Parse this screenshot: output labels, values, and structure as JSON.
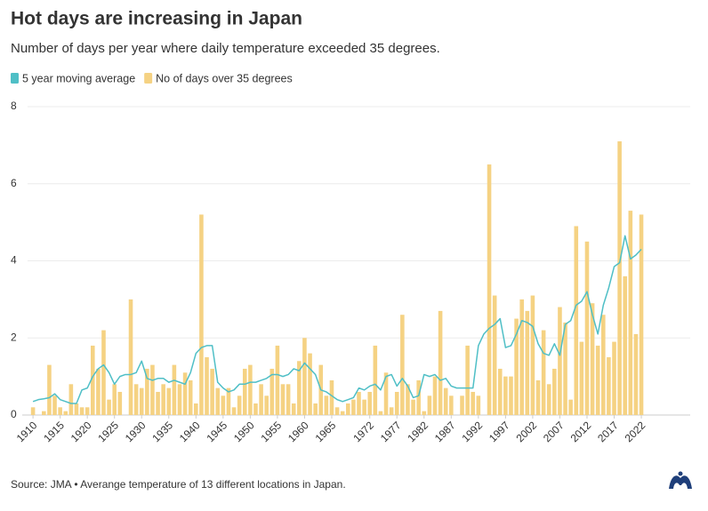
{
  "chart_data": {
    "type": "bar",
    "title": "Hot days are increasing in Japan",
    "subtitle": "Number of days per year where daily temperature exceeded 35 degrees.",
    "source": "Source: JMA • Averange temperature of 13 different locations in Japan.",
    "x": [
      1910,
      1911,
      1912,
      1913,
      1914,
      1915,
      1916,
      1917,
      1918,
      1919,
      1920,
      1921,
      1922,
      1923,
      1924,
      1925,
      1926,
      1927,
      1928,
      1929,
      1930,
      1931,
      1932,
      1933,
      1934,
      1935,
      1936,
      1937,
      1938,
      1939,
      1940,
      1941,
      1942,
      1943,
      1944,
      1945,
      1946,
      1947,
      1948,
      1949,
      1950,
      1951,
      1952,
      1953,
      1954,
      1955,
      1956,
      1957,
      1958,
      1959,
      1960,
      1961,
      1962,
      1963,
      1964,
      1965,
      1966,
      1967,
      1968,
      1969,
      1970,
      1971,
      1972,
      1973,
      1974,
      1975,
      1976,
      1977,
      1978,
      1979,
      1980,
      1981,
      1982,
      1983,
      1984,
      1985,
      1986,
      1987,
      1988,
      1989,
      1990,
      1991,
      1992,
      1993,
      1994,
      1995,
      1996,
      1997,
      1998,
      1999,
      2000,
      2001,
      2002,
      2003,
      2004,
      2005,
      2006,
      2007,
      2008,
      2009,
      2010,
      2011,
      2012,
      2013,
      2014,
      2015,
      2016,
      2017,
      2018,
      2019,
      2020,
      2021,
      2022
    ],
    "series": [
      {
        "name": "5 year moving average",
        "color": "#4fbfc6",
        "type": "line",
        "values": [
          0.35,
          0.4,
          0.42,
          0.45,
          0.55,
          0.4,
          0.35,
          0.3,
          0.3,
          0.65,
          0.7,
          1.0,
          1.2,
          1.3,
          1.1,
          0.8,
          1.0,
          1.05,
          1.05,
          1.1,
          1.4,
          0.95,
          0.9,
          0.95,
          0.95,
          0.85,
          0.9,
          0.85,
          0.8,
          1.1,
          1.6,
          1.75,
          1.8,
          1.8,
          0.85,
          0.7,
          0.6,
          0.65,
          0.8,
          0.8,
          0.85,
          0.85,
          0.9,
          0.95,
          1.05,
          1.05,
          1.0,
          1.05,
          1.2,
          1.15,
          1.35,
          1.2,
          1.05,
          0.65,
          0.6,
          0.5,
          0.4,
          0.35,
          0.4,
          0.45,
          0.7,
          0.65,
          0.75,
          0.8,
          0.65,
          1.0,
          1.05,
          0.75,
          0.95,
          0.75,
          0.45,
          0.5,
          1.05,
          1.0,
          1.05,
          0.9,
          0.95,
          0.75,
          0.7,
          0.7,
          0.7,
          0.7,
          1.8,
          2.1,
          2.25,
          2.35,
          2.5,
          1.75,
          1.8,
          2.1,
          2.45,
          2.4,
          2.3,
          1.85,
          1.6,
          1.55,
          1.85,
          1.55,
          2.35,
          2.45,
          2.85,
          2.95,
          3.2,
          2.6,
          2.1,
          2.85,
          3.3,
          3.85,
          3.95,
          4.65,
          4.05,
          4.15,
          4.3
        ]
      },
      {
        "name": "No of days over 35 degrees",
        "color": "#f5d283",
        "type": "bar",
        "values": [
          0.2,
          0,
          0.1,
          1.3,
          0.5,
          0.2,
          0.1,
          0.8,
          0.3,
          0.2,
          0.2,
          1.8,
          1.2,
          2.2,
          0.4,
          0.8,
          0.6,
          0,
          3.0,
          0.8,
          0.7,
          1.2,
          1.3,
          0.6,
          0.8,
          0.7,
          1.3,
          0.8,
          1.1,
          0.9,
          0.3,
          5.2,
          1.5,
          1.2,
          0.7,
          0.5,
          0.7,
          0.2,
          0.5,
          1.2,
          1.3,
          0.3,
          0.8,
          0.5,
          1.2,
          1.8,
          0.8,
          0.8,
          0.3,
          1.4,
          2.0,
          1.6,
          0.3,
          1.3,
          0.5,
          0.9,
          0.2,
          0.1,
          0.3,
          0.4,
          0.6,
          0.4,
          0.6,
          1.8,
          0.1,
          1.1,
          0.2,
          0.6,
          2.6,
          0.8,
          0.4,
          0.9,
          0.1,
          0.5,
          1.0,
          2.7,
          0.7,
          0.5,
          0,
          0.5,
          1.8,
          0.6,
          0.5,
          0,
          6.5,
          3.1,
          1.2,
          1.0,
          1.0,
          2.5,
          3.0,
          2.7,
          3.1,
          0.9,
          2.2,
          0.8,
          1.2,
          2.8,
          2.4,
          0.4,
          4.9,
          1.9,
          4.5,
          2.9,
          1.8,
          2.6,
          1.5,
          1.9,
          7.1,
          3.6,
          5.3,
          2.1,
          5.2
        ]
      }
    ],
    "xlim": [
      1909,
      2031
    ],
    "xticks": [
      1910,
      1915,
      1920,
      1925,
      1930,
      1935,
      1940,
      1945,
      1950,
      1955,
      1960,
      1965,
      1972,
      1977,
      1982,
      1987,
      1992,
      1997,
      2002,
      2007,
      2012,
      2017,
      2022
    ],
    "ylim": [
      0,
      8
    ],
    "yticks": [
      0,
      2,
      4,
      6,
      8
    ],
    "grid": true
  }
}
